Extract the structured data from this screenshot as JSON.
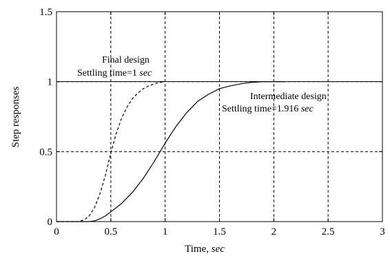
{
  "chart_data": {
    "type": "line",
    "xlabel": "Time,",
    "xlabel_unit": "sec",
    "ylabel": "Step responses",
    "xlim": [
      0,
      3
    ],
    "ylim": [
      0,
      1.5
    ],
    "x_ticks": [
      "0",
      "0.5",
      "1",
      "1.5",
      "2",
      "2.5",
      "3"
    ],
    "y_ticks": [
      "0",
      "0.5",
      "1",
      "1.5"
    ],
    "grid": true,
    "series": [
      {
        "name": "Final design",
        "style": "dashed",
        "color": "#000000",
        "x": [
          0,
          0.2,
          0.25,
          0.3,
          0.35,
          0.4,
          0.45,
          0.5,
          0.55,
          0.6,
          0.65,
          0.7,
          0.75,
          0.8,
          0.85,
          0.9,
          0.95,
          1.0
        ],
        "y": [
          0,
          0,
          0.01,
          0.04,
          0.1,
          0.2,
          0.33,
          0.49,
          0.63,
          0.74,
          0.82,
          0.88,
          0.92,
          0.95,
          0.97,
          0.985,
          0.995,
          1.0
        ]
      },
      {
        "name": "Intermediate design",
        "style": "solid",
        "color": "#000000",
        "x": [
          0,
          0.3,
          0.35,
          0.4,
          0.45,
          0.5,
          0.6,
          0.7,
          0.8,
          0.9,
          1.0,
          1.1,
          1.2,
          1.3,
          1.4,
          1.5,
          1.6,
          1.7,
          1.8,
          1.9,
          1.916,
          2.0,
          2.1
        ],
        "y": [
          0,
          0,
          0.005,
          0.02,
          0.04,
          0.07,
          0.13,
          0.21,
          0.31,
          0.43,
          0.56,
          0.68,
          0.78,
          0.86,
          0.91,
          0.95,
          0.97,
          0.985,
          0.995,
          1.0,
          1.0,
          1.0,
          1.0
        ]
      }
    ],
    "reference_line": {
      "y": 1,
      "style": "solid"
    },
    "annotations": {
      "final_title": "Final design",
      "final_settling": "Settling time=1",
      "final_unit": "sec",
      "intermediate_title": "Intermediate design",
      "intermediate_settling": "Settling time=1.916",
      "intermediate_unit": "sec"
    }
  }
}
